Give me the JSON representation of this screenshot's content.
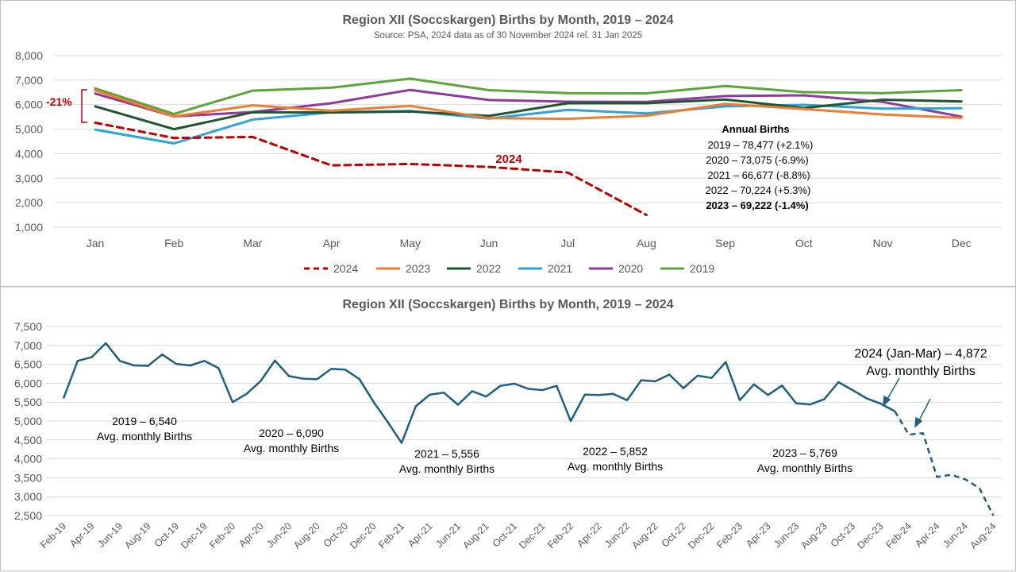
{
  "chart_data": [
    {
      "type": "line",
      "title": "Region XII (Soccskargen) Births by Month, 2019 – 2024",
      "subtitle": "Source: PSA, 2024 data as of 30 November 2024 rel. 31 Jan 2025",
      "categories": [
        "Jan",
        "Feb",
        "Mar",
        "Apr",
        "May",
        "Jun",
        "Jul",
        "Aug",
        "Sep",
        "Oct",
        "Nov",
        "Dec"
      ],
      "ylim": [
        1000,
        8000
      ],
      "yticks": [
        "1,000",
        "2,000",
        "3,000",
        "4,000",
        "5,000",
        "6,000",
        "7,000",
        "8,000"
      ],
      "grid": true,
      "legend_position": "bottom",
      "series": [
        {
          "name": "2024",
          "color": "#c00000",
          "dashed": true,
          "values": [
            5260,
            4640,
            4680,
            3520,
            3580,
            3460,
            3230,
            1500,
            null,
            null,
            null,
            null
          ]
        },
        {
          "name": "2023",
          "color": "#ed7d31",
          "dashed": false,
          "values": [
            6580,
            5520,
            5970,
            5750,
            5950,
            5450,
            5420,
            5550,
            6030,
            5820,
            5600,
            5460
          ]
        },
        {
          "name": "2022",
          "color": "#1e5631",
          "dashed": false,
          "values": [
            5930,
            5000,
            5690,
            5680,
            5720,
            5540,
            6060,
            6060,
            6210,
            5860,
            6200,
            6130
          ]
        },
        {
          "name": "2021",
          "color": "#2ea3dc",
          "dashed": false,
          "values": [
            4980,
            4420,
            5390,
            5690,
            5740,
            5430,
            5790,
            5640,
            5930,
            5990,
            5840,
            5850
          ]
        },
        {
          "name": "2020",
          "color": "#8e3a9e",
          "dashed": false,
          "values": [
            6450,
            5520,
            5700,
            6060,
            6600,
            6190,
            6120,
            6110,
            6350,
            6380,
            6110,
            5510
          ]
        },
        {
          "name": "2019",
          "color": "#5ba639",
          "dashed": false,
          "values": [
            6660,
            5620,
            6570,
            6690,
            7060,
            6590,
            6470,
            6460,
            6760,
            6510,
            6470,
            6590
          ]
        }
      ],
      "annotations": {
        "drop_label": "-21%",
        "series_label": "2024",
        "annual_title": "Annual Births",
        "annual_lines": [
          "2019 – 78,477 (+2.1%)",
          "2020 – 73,075 (-6.9%)",
          "2021 – 66,677 (-8.8%)",
          "2022 – 70,224 (+5.3%)",
          "2023 – 69,222 (-1.4%)"
        ]
      }
    },
    {
      "type": "line",
      "title": "Region XII (Soccskargen) Births by Month, 2019 – 2024",
      "ylim": [
        2500,
        7500
      ],
      "yticks": [
        "2,500",
        "3,000",
        "3,500",
        "4,000",
        "4,500",
        "5,000",
        "5,500",
        "6,000",
        "6,500",
        "7,000",
        "7,500"
      ],
      "grid": true,
      "tick_labels": [
        "Feb-19",
        "Apr-19",
        "Jun-19",
        "Aug-19",
        "Oct-19",
        "Dec-19",
        "Feb-20",
        "Apr-20",
        "Jun-20",
        "Aug-20",
        "Oct-20",
        "Dec-20",
        "Feb-21",
        "Apr-21",
        "Jun-21",
        "Aug-21",
        "Oct-21",
        "Dec-21",
        "Feb-22",
        "Apr-22",
        "Jun-22",
        "Aug-22",
        "Oct-22",
        "Dec-22",
        "Feb-23",
        "Apr-23",
        "Jun-23",
        "Aug-23",
        "Oct-23",
        "Dec-23",
        "Feb-24",
        "Apr-24",
        "Jun-24",
        "Aug-24"
      ],
      "x_start": "Feb-19",
      "color": "#1f5f80",
      "values": [
        5600,
        6590,
        6690,
        7060,
        6590,
        6470,
        6460,
        6760,
        6510,
        6470,
        6590,
        6400,
        5500,
        5720,
        6060,
        6600,
        6190,
        6120,
        6110,
        6380,
        6360,
        6110,
        5510,
        4980,
        4420,
        5390,
        5700,
        5750,
        5430,
        5790,
        5650,
        5930,
        5990,
        5850,
        5820,
        5930,
        5000,
        5700,
        5690,
        5720,
        5550,
        6080,
        6050,
        6230,
        5870,
        6200,
        6140,
        6560,
        5550,
        5970,
        5690,
        5940,
        5470,
        5440,
        5580,
        6030,
        5820,
        5600,
        5460,
        5260,
        4640,
        4680,
        3520,
        3580,
        3460,
        3230,
        2480
      ],
      "dashed_from_index": 59,
      "annotations": {
        "avg_2019": "2019 – 6,540",
        "avg_2020": "2020 – 6,090",
        "avg_2021": "2021 – 5,556",
        "avg_2022": "2022 – 5,852",
        "avg_2023": "2023 – 5,769",
        "avg_2024": "2024 (Jan-Mar) – 4,872",
        "avg_caption": "Avg. monthly Births"
      }
    }
  ]
}
